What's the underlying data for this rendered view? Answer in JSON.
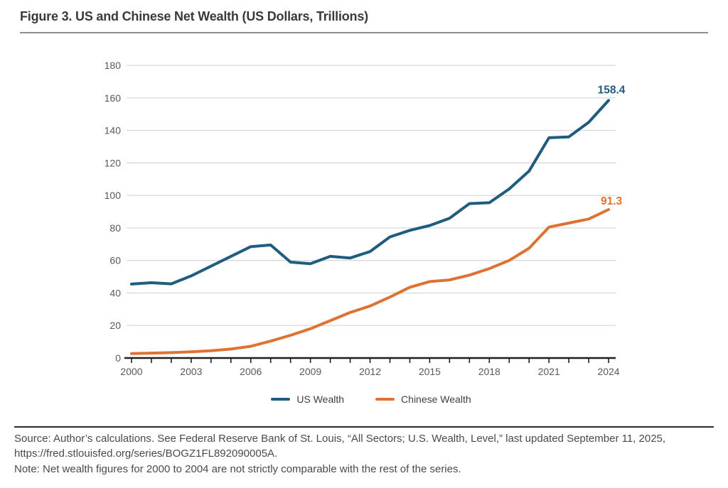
{
  "figure": {
    "title": "Figure 3. US and Chinese Net Wealth (US Dollars, Trillions)"
  },
  "legend": [
    {
      "label": "US Wealth",
      "color": "#1f5c7d"
    },
    {
      "label": "Chinese Wealth",
      "color": "#dd7233"
    }
  ],
  "footer": {
    "source_line1": "Source: Author’s calculations. See Federal Reserve Bank of St. Louis, “All Sectors; U.S. Wealth, Level,” last updated September 11, 2025,",
    "source_line2": "https://fred.stlouisfed.org/series/BOGZ1FL892090005A.",
    "note": "Note: Net wealth figures for 2000 to 2004 are not strictly comparable with the rest of the series."
  },
  "chart_data": {
    "type": "line",
    "x": [
      2000,
      2001,
      2002,
      2003,
      2004,
      2005,
      2006,
      2007,
      2008,
      2009,
      2010,
      2011,
      2012,
      2013,
      2014,
      2015,
      2016,
      2017,
      2018,
      2019,
      2020,
      2021,
      2022,
      2023,
      2024
    ],
    "series": [
      {
        "name": "US Wealth",
        "color": "#1f5c7d",
        "end_label": "158.4",
        "values": [
          45.5,
          46.3,
          45.6,
          50.5,
          56.5,
          62.5,
          68.5,
          69.5,
          59.0,
          58.0,
          62.5,
          61.5,
          65.5,
          74.5,
          78.5,
          81.5,
          86.0,
          95.0,
          95.5,
          104.0,
          115.0,
          135.5,
          136.0,
          145.0,
          158.4
        ]
      },
      {
        "name": "Chinese Wealth",
        "color": "#dd7233",
        "end_label": "91.3",
        "values": [
          2.7,
          3.0,
          3.3,
          3.8,
          4.5,
          5.5,
          7.2,
          10.4,
          14.0,
          18.0,
          23.0,
          28.0,
          32.0,
          37.5,
          43.5,
          47.0,
          48.0,
          51.0,
          55.0,
          60.0,
          67.5,
          80.5,
          83.0,
          85.5,
          91.3
        ]
      }
    ],
    "ylim": [
      0,
      180
    ],
    "ytick_step": 20,
    "xticks_labeled": [
      2000,
      2003,
      2006,
      2009,
      2012,
      2015,
      2018,
      2021,
      2024
    ],
    "grid": "horizontal-only",
    "legend_position": "bottom",
    "colors": {
      "gridline": "#d9d9d9",
      "axis": "#1f1f1f",
      "tick_label": "#595959"
    }
  }
}
